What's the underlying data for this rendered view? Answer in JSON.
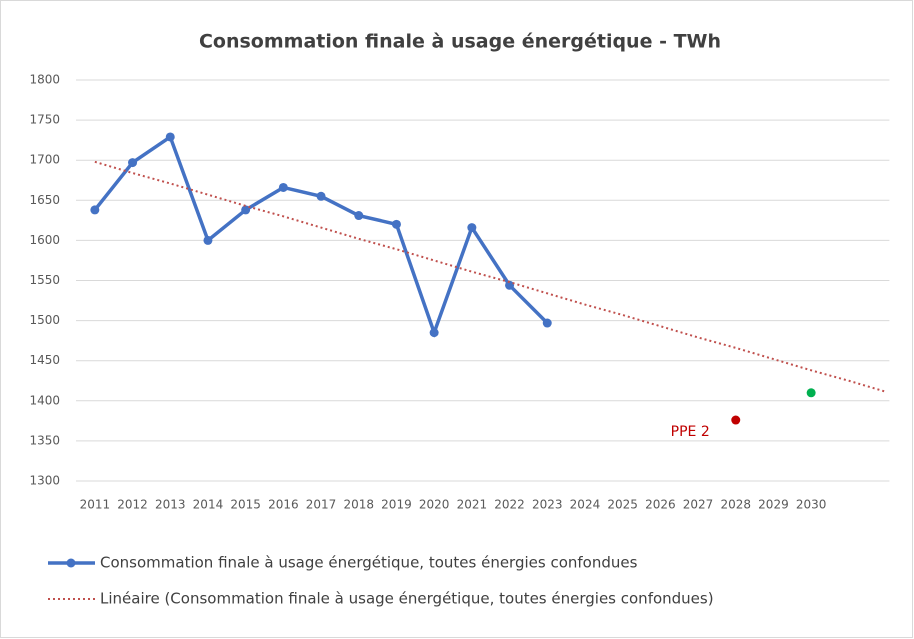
{
  "chart_data": {
    "type": "line",
    "title": "Consommation finale à usage énergétique - TWh",
    "categories": [
      "2011",
      "2012",
      "2013",
      "2014",
      "2015",
      "2016",
      "2017",
      "2018",
      "2019",
      "2020",
      "2021",
      "2022",
      "2023",
      "2024",
      "2025",
      "2026",
      "2027",
      "2028",
      "2029",
      "2030",
      null,
      null
    ],
    "series": [
      {
        "name": "Consommation finale à usage énergétique, toutes énergies confondues",
        "color": "#4472c4",
        "values": [
          1638,
          1697,
          1729,
          1600,
          1638,
          1666,
          1655,
          1631,
          1620,
          1485,
          1616,
          1544,
          1497,
          null,
          null,
          null,
          null,
          null,
          null,
          null,
          null,
          null
        ]
      },
      {
        "name": "Linéaire (Consommation finale à usage énergétique, toutes énergies confondues)",
        "color": "#c0504d",
        "style": "dotted",
        "values": [
          1698,
          1684,
          1671,
          1657,
          1643,
          1630,
          1616,
          1602,
          1589,
          1575,
          1561,
          1548,
          1534,
          1520,
          1507,
          1493,
          1479,
          1466,
          1452,
          1438,
          1425,
          1411
        ]
      }
    ],
    "points": [
      {
        "x": "2028",
        "value": 1376,
        "color": "#c00000",
        "label": "PPE 2"
      },
      {
        "x": "2030",
        "value": 1410,
        "color": "#00b050"
      }
    ],
    "ylim": [
      1300,
      1800
    ],
    "yticks": [
      1300,
      1350,
      1400,
      1450,
      1500,
      1550,
      1600,
      1650,
      1700,
      1750,
      1800
    ],
    "grid": true,
    "legend": "bottom"
  }
}
